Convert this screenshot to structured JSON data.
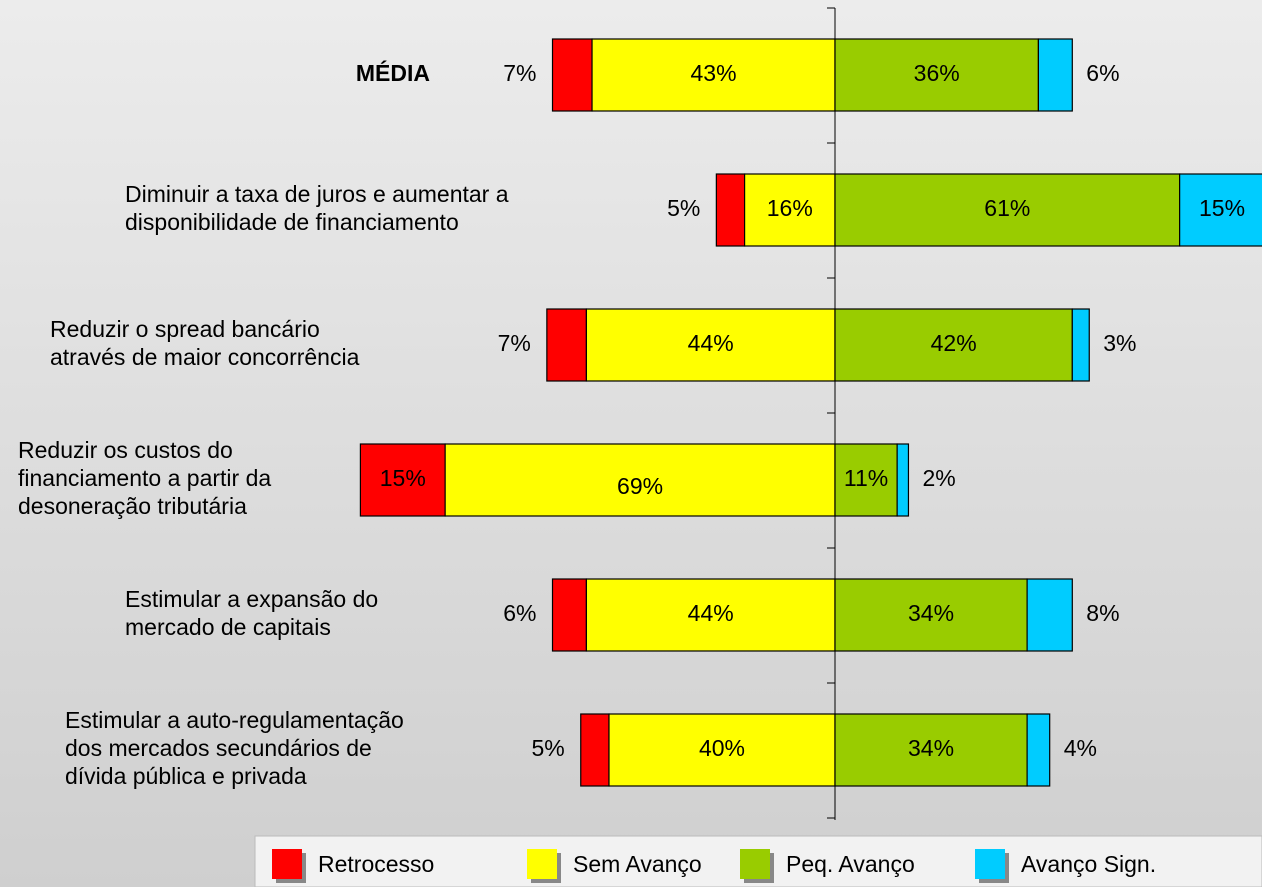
{
  "chart_data": {
    "type": "diverging_bar",
    "categories": [
      [
        "MÉDIA"
      ],
      [
        "Diminuir a taxa de juros e aumentar a",
        "disponibilidade de financiamento"
      ],
      [
        "Reduzir o spread bancário",
        "através de maior concorrência"
      ],
      [
        "Reduzir os custos do",
        "financiamento a partir da",
        "desoneração tributária"
      ],
      [
        "Estimular a expansão do",
        "mercado de capitais"
      ],
      [
        "Estimular a auto-regulamentação",
        "dos mercados secundários de",
        "dívida pública e privada"
      ]
    ],
    "series": [
      {
        "name": "Retrocesso",
        "color": "#ff0000",
        "values": [
          7,
          5,
          7,
          15,
          6,
          5
        ],
        "value_labels": [
          "7%",
          "5%",
          "7%",
          "15%",
          "6%",
          "5%"
        ]
      },
      {
        "name": "Sem Avanço",
        "color": "#ffff00",
        "values": [
          43,
          16,
          44,
          69,
          44,
          40
        ],
        "value_labels": [
          "43%",
          "16%",
          "44%",
          "69%",
          "44%",
          "40%"
        ]
      },
      {
        "name": "Peq. Avanço",
        "color": "#99cc00",
        "values": [
          36,
          61,
          42,
          11,
          34,
          34
        ],
        "value_labels": [
          "36%",
          "61%",
          "42%",
          "11%",
          "34%",
          "34%"
        ]
      },
      {
        "name": "Avanço Sign.",
        "color": "#00ccff",
        "values": [
          6,
          15,
          3,
          2,
          8,
          4
        ],
        "value_labels": [
          "6%",
          "15%",
          "3%",
          "2%",
          "8%",
          "4%"
        ]
      }
    ]
  }
}
